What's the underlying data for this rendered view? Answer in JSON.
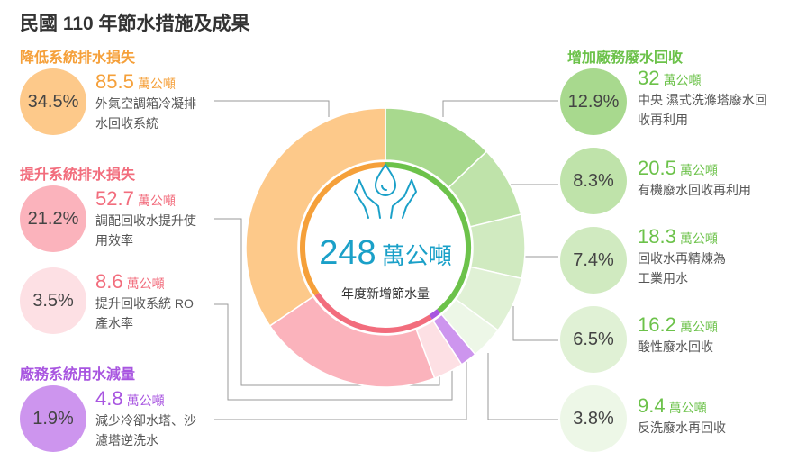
{
  "title": "民國 110 年節水措施及成果",
  "center": {
    "value": "248",
    "unit": "萬公噸",
    "label": "年度新增節水量"
  },
  "sections": {
    "reduce_loss": "降低系統排水損失",
    "improve_loss": "提升系統排水損失",
    "plant_reduce": "廠務系統用水減量",
    "recycle": "增加廠務廢水回收"
  },
  "unit_label": "萬公噸",
  "colors": {
    "orange": "#f5a03a",
    "red": "#f26d7d",
    "purple": "#a855e0",
    "green": "#6cc24a",
    "orange_light": "#fdc98a",
    "red_light": "#fbb3bc",
    "red_lighter": "#fde0e4",
    "purple_light": "#cd95ee"
  },
  "items": [
    {
      "percent": "34.5%",
      "amount": "85.5",
      "desc": [
        "外氣空調箱冷凝排",
        "水回收系統"
      ]
    },
    {
      "percent": "21.2%",
      "amount": "52.7",
      "desc": [
        "調配回收水提升使",
        "用效率"
      ]
    },
    {
      "percent": "3.5%",
      "amount": "8.6",
      "desc": [
        "提升回收系統 RO",
        "產水率"
      ]
    },
    {
      "percent": "1.9%",
      "amount": "4.8",
      "desc": [
        "減少冷卻水塔、沙",
        "濾塔逆洗水"
      ]
    },
    {
      "percent": "12.9%",
      "amount": "32",
      "desc": [
        "中央 濕式洗滌塔廢水回",
        "收再利用"
      ]
    },
    {
      "percent": "8.3%",
      "amount": "20.5",
      "desc": [
        "有機廢水回收再利用"
      ]
    },
    {
      "percent": "7.4%",
      "amount": "18.3",
      "desc": [
        "回收水再精煉為",
        "工業用水"
      ]
    },
    {
      "percent": "6.5%",
      "amount": "16.2",
      "desc": [
        "酸性廢水回收"
      ]
    },
    {
      "percent": "3.8%",
      "amount": "9.4",
      "desc": [
        "反洗廢水再回收"
      ]
    }
  ],
  "chart_data": {
    "type": "pie",
    "title": "民國 110 年節水措施及成果",
    "total": 248,
    "unit": "萬公噸",
    "slices": [
      {
        "label": "外氣空調箱冷凝排水回收系統",
        "group": "降低系統排水損失",
        "value": 85.5,
        "percent": 34.5,
        "color": "#fdc98a"
      },
      {
        "label": "調配回收水提升使用效率",
        "group": "提升系統排水損失",
        "value": 52.7,
        "percent": 21.2,
        "color": "#fbb3bc"
      },
      {
        "label": "提升回收系統 RO 產水率",
        "group": "提升系統排水損失",
        "value": 8.6,
        "percent": 3.5,
        "color": "#fde0e4"
      },
      {
        "label": "減少冷卻水塔、沙濾塔逆洗水",
        "group": "廠務系統用水減量",
        "value": 4.8,
        "percent": 1.9,
        "color": "#cd95ee"
      },
      {
        "label": "中央 濕式洗滌塔廢水回收再利用",
        "group": "增加廠務廢水回收",
        "value": 32,
        "percent": 12.9,
        "color": "#a8d98e"
      },
      {
        "label": "有機廢水回收再利用",
        "group": "增加廠務廢水回收",
        "value": 20.5,
        "percent": 8.3,
        "color": "#bfe3aa"
      },
      {
        "label": "回收水再精煉為工業用水",
        "group": "增加廠務廢水回收",
        "value": 18.3,
        "percent": 7.4,
        "color": "#d0eac0"
      },
      {
        "label": "酸性廢水回收",
        "group": "增加廠務廢水回收",
        "value": 16.2,
        "percent": 6.5,
        "color": "#e0f1d5"
      },
      {
        "label": "反洗廢水再回收",
        "group": "增加廠務廢水回收",
        "value": 9.4,
        "percent": 3.8,
        "color": "#edf7e7"
      }
    ],
    "groups": [
      {
        "name": "降低系統排水損失",
        "color": "#f5a03a"
      },
      {
        "name": "提升系統排水損失",
        "color": "#f26d7d"
      },
      {
        "name": "廠務系統用水減量",
        "color": "#a855e0"
      },
      {
        "name": "增加廠務廢水回收",
        "color": "#6cc24a"
      }
    ]
  }
}
